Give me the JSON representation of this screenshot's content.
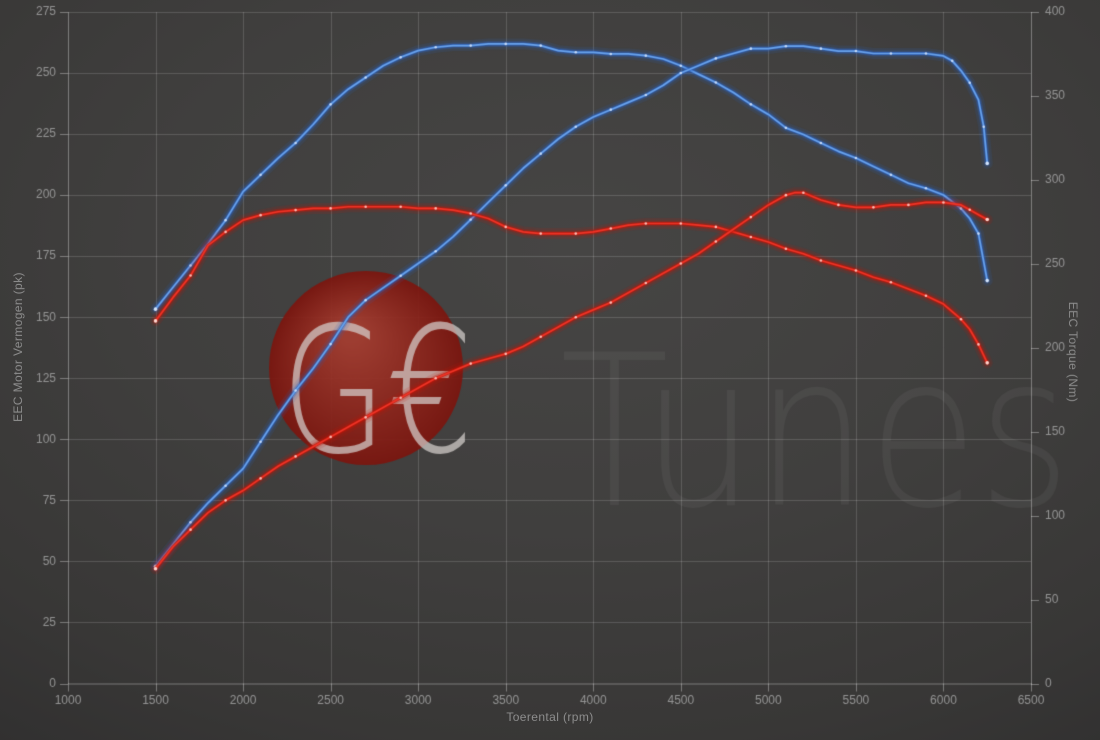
{
  "page": {
    "background_color": "#3e3d3c",
    "grid_color": "rgba(255,255,255,0.16)",
    "axis_color": "rgba(255,255,255,0.34)",
    "tick_label_color": "#959595"
  },
  "chart_data": {
    "type": "line",
    "title": "",
    "legend": "none",
    "grid": "on",
    "x_axis": {
      "label": "Toerental (rpm)",
      "min": 1000,
      "max": 6500,
      "tick_step": 500,
      "ticks": [
        1000,
        1500,
        2000,
        2500,
        3000,
        3500,
        4000,
        4500,
        5000,
        5500,
        6000,
        6500
      ]
    },
    "y_left": {
      "label": "EEC Motor Vermogen (pk)",
      "min": 0,
      "max": 275,
      "tick_step": 25,
      "ticks": [
        0,
        25,
        50,
        75,
        100,
        125,
        150,
        175,
        200,
        225,
        250,
        275
      ]
    },
    "y_right": {
      "label": "EEC Torque (Nm)",
      "min": 0,
      "max": 400,
      "tick_step": 50,
      "ticks": [
        0,
        50,
        100,
        150,
        200,
        250,
        300,
        350,
        400
      ]
    },
    "series": [
      {
        "name": "tuned-torque-nm",
        "axis": "right",
        "color_core": "#6aa3ea",
        "color_glow": "#2c62c0",
        "color_dot": "#d3e4fb",
        "points": [
          [
            1500,
            223
          ],
          [
            1600,
            236
          ],
          [
            1700,
            249
          ],
          [
            1800,
            262
          ],
          [
            1900,
            276
          ],
          [
            2000,
            293
          ],
          [
            2100,
            303
          ],
          [
            2200,
            313
          ],
          [
            2300,
            322
          ],
          [
            2400,
            333
          ],
          [
            2500,
            345
          ],
          [
            2600,
            354
          ],
          [
            2700,
            361
          ],
          [
            2800,
            368
          ],
          [
            2900,
            373
          ],
          [
            3000,
            377
          ],
          [
            3100,
            379
          ],
          [
            3200,
            380
          ],
          [
            3300,
            380
          ],
          [
            3400,
            381
          ],
          [
            3500,
            381
          ],
          [
            3600,
            381
          ],
          [
            3700,
            380
          ],
          [
            3800,
            377
          ],
          [
            3900,
            376
          ],
          [
            4000,
            376
          ],
          [
            4100,
            375
          ],
          [
            4200,
            375
          ],
          [
            4300,
            374
          ],
          [
            4400,
            372
          ],
          [
            4500,
            368
          ],
          [
            4600,
            363
          ],
          [
            4700,
            358
          ],
          [
            4800,
            352
          ],
          [
            4900,
            345
          ],
          [
            5000,
            339
          ],
          [
            5100,
            331
          ],
          [
            5200,
            327
          ],
          [
            5300,
            322
          ],
          [
            5400,
            317
          ],
          [
            5500,
            313
          ],
          [
            5600,
            308
          ],
          [
            5700,
            303
          ],
          [
            5800,
            298
          ],
          [
            5900,
            295
          ],
          [
            6000,
            291
          ],
          [
            6100,
            283
          ],
          [
            6150,
            277
          ],
          [
            6200,
            268
          ],
          [
            6250,
            240
          ]
        ]
      },
      {
        "name": "tuned-power-pk",
        "axis": "left",
        "color_core": "#6aa3ea",
        "color_glow": "#2c62c0",
        "color_dot": "#d3e4fb",
        "points": [
          [
            1500,
            48
          ],
          [
            1600,
            57
          ],
          [
            1700,
            66
          ],
          [
            1800,
            74
          ],
          [
            1900,
            81
          ],
          [
            2000,
            88
          ],
          [
            2100,
            99
          ],
          [
            2200,
            110
          ],
          [
            2300,
            120
          ],
          [
            2400,
            129
          ],
          [
            2500,
            139
          ],
          [
            2600,
            150
          ],
          [
            2700,
            157
          ],
          [
            2800,
            162
          ],
          [
            2900,
            167
          ],
          [
            3000,
            172
          ],
          [
            3100,
            177
          ],
          [
            3200,
            183
          ],
          [
            3300,
            190
          ],
          [
            3400,
            197
          ],
          [
            3500,
            204
          ],
          [
            3600,
            211
          ],
          [
            3700,
            217
          ],
          [
            3800,
            223
          ],
          [
            3900,
            228
          ],
          [
            4000,
            232
          ],
          [
            4100,
            235
          ],
          [
            4200,
            238
          ],
          [
            4300,
            241
          ],
          [
            4400,
            245
          ],
          [
            4500,
            250
          ],
          [
            4600,
            253
          ],
          [
            4700,
            256
          ],
          [
            4800,
            258
          ],
          [
            4900,
            260
          ],
          [
            5000,
            260
          ],
          [
            5100,
            261
          ],
          [
            5200,
            261
          ],
          [
            5300,
            260
          ],
          [
            5400,
            259
          ],
          [
            5500,
            259
          ],
          [
            5600,
            258
          ],
          [
            5700,
            258
          ],
          [
            5800,
            258
          ],
          [
            5900,
            258
          ],
          [
            6000,
            257
          ],
          [
            6050,
            255
          ],
          [
            6100,
            251
          ],
          [
            6150,
            246
          ],
          [
            6200,
            239
          ],
          [
            6230,
            228
          ],
          [
            6250,
            213
          ]
        ]
      },
      {
        "name": "original-torque-nm",
        "axis": "right",
        "color_core": "#ee3528",
        "color_glow": "#c41507",
        "color_dot": "#ffd4cd",
        "points": [
          [
            1500,
            216
          ],
          [
            1600,
            230
          ],
          [
            1700,
            243
          ],
          [
            1800,
            261
          ],
          [
            1900,
            269
          ],
          [
            2000,
            276
          ],
          [
            2100,
            279
          ],
          [
            2200,
            281
          ],
          [
            2300,
            282
          ],
          [
            2400,
            283
          ],
          [
            2500,
            283
          ],
          [
            2600,
            284
          ],
          [
            2700,
            284
          ],
          [
            2800,
            284
          ],
          [
            2900,
            284
          ],
          [
            3000,
            283
          ],
          [
            3100,
            283
          ],
          [
            3200,
            282
          ],
          [
            3300,
            280
          ],
          [
            3400,
            277
          ],
          [
            3500,
            272
          ],
          [
            3600,
            269
          ],
          [
            3700,
            268
          ],
          [
            3800,
            268
          ],
          [
            3900,
            268
          ],
          [
            4000,
            269
          ],
          [
            4100,
            271
          ],
          [
            4200,
            273
          ],
          [
            4300,
            274
          ],
          [
            4400,
            274
          ],
          [
            4500,
            274
          ],
          [
            4600,
            273
          ],
          [
            4700,
            272
          ],
          [
            4800,
            269
          ],
          [
            4900,
            266
          ],
          [
            5000,
            263
          ],
          [
            5100,
            259
          ],
          [
            5200,
            256
          ],
          [
            5300,
            252
          ],
          [
            5400,
            249
          ],
          [
            5500,
            246
          ],
          [
            5600,
            242
          ],
          [
            5700,
            239
          ],
          [
            5800,
            235
          ],
          [
            5900,
            231
          ],
          [
            6000,
            226
          ],
          [
            6100,
            217
          ],
          [
            6150,
            211
          ],
          [
            6200,
            202
          ],
          [
            6250,
            191
          ]
        ]
      },
      {
        "name": "original-power-pk",
        "axis": "left",
        "color_core": "#ee3528",
        "color_glow": "#c41507",
        "color_dot": "#ffd4cd",
        "points": [
          [
            1500,
            47
          ],
          [
            1600,
            56
          ],
          [
            1700,
            63
          ],
          [
            1800,
            70
          ],
          [
            1900,
            75
          ],
          [
            2000,
            79
          ],
          [
            2100,
            84
          ],
          [
            2200,
            89
          ],
          [
            2300,
            93
          ],
          [
            2400,
            97
          ],
          [
            2500,
            101
          ],
          [
            2600,
            105
          ],
          [
            2700,
            109
          ],
          [
            2800,
            113
          ],
          [
            2900,
            117
          ],
          [
            3000,
            121
          ],
          [
            3100,
            125
          ],
          [
            3200,
            128
          ],
          [
            3300,
            131
          ],
          [
            3400,
            133
          ],
          [
            3500,
            135
          ],
          [
            3600,
            138
          ],
          [
            3700,
            142
          ],
          [
            3800,
            146
          ],
          [
            3900,
            150
          ],
          [
            4000,
            153
          ],
          [
            4100,
            156
          ],
          [
            4200,
            160
          ],
          [
            4300,
            164
          ],
          [
            4400,
            168
          ],
          [
            4500,
            172
          ],
          [
            4600,
            176
          ],
          [
            4700,
            181
          ],
          [
            4800,
            186
          ],
          [
            4900,
            191
          ],
          [
            5000,
            196
          ],
          [
            5100,
            200
          ],
          [
            5150,
            201
          ],
          [
            5200,
            201
          ],
          [
            5300,
            198
          ],
          [
            5400,
            196
          ],
          [
            5500,
            195
          ],
          [
            5600,
            195
          ],
          [
            5700,
            196
          ],
          [
            5800,
            196
          ],
          [
            5900,
            197
          ],
          [
            6000,
            197
          ],
          [
            6100,
            196
          ],
          [
            6150,
            194
          ],
          [
            6200,
            192
          ],
          [
            6250,
            190
          ]
        ]
      }
    ],
    "watermark": {
      "logo_text": "G€",
      "brand_text": "Tunes",
      "circle_color_inner": "#a63d30",
      "circle_color_outer": "#7c150e",
      "logo_text_color": "rgba(212,207,204,0.72)",
      "brand_text_color": "rgba(255,255,255,0.05)"
    }
  }
}
